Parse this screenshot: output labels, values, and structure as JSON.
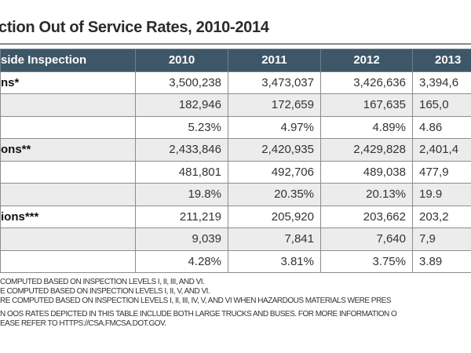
{
  "title": "ction Out of Service Rates, 2010-2014",
  "table": {
    "headers": [
      "side Inspection",
      "2010",
      "2011",
      "2012",
      "2013"
    ],
    "rows": [
      {
        "label": "ns*",
        "values": [
          "3,500,238",
          "3,473,037",
          "3,426,636",
          "3,394,6"
        ]
      },
      {
        "label": "",
        "values": [
          "182,946",
          "172,659",
          "167,635",
          "165,0"
        ]
      },
      {
        "label": "",
        "values": [
          "5.23%",
          "4.97%",
          "4.89%",
          "4.86"
        ]
      },
      {
        "label": "ons**",
        "values": [
          "2,433,846",
          "2,420,935",
          "2,429,828",
          "2,401,4"
        ]
      },
      {
        "label": "",
        "values": [
          "481,801",
          "492,706",
          "489,038",
          "477,9"
        ]
      },
      {
        "label": "",
        "values": [
          "19.8%",
          "20.35%",
          "20.13%",
          "19.9"
        ]
      },
      {
        "label": "ions***",
        "values": [
          "211,219",
          "205,920",
          "203,662",
          "203,2"
        ]
      },
      {
        "label": "",
        "values": [
          "9,039",
          "7,841",
          "7,640",
          "7,9"
        ]
      },
      {
        "label": "",
        "values": [
          "4.28%",
          "3.81%",
          "3.75%",
          "3.89"
        ]
      }
    ]
  },
  "notes": [
    "COMPUTED BASED ON INSPECTION LEVELS I, II, III, AND VI.",
    "E COMPUTED BASED ON INSPECTION LEVELS I, II, V, AND VI.",
    "RE COMPUTED BASED ON INSPECTION LEVELS I, II, III, IV, V, AND VI WHEN HAZARDOUS MATERIALS WERE PRES",
    "N OOS RATES DEPICTED IN THIS TABLE INCLUDE BOTH LARGE TRUCKS AND BUSES. FOR MORE INFORMATION O",
    "EASE REFER TO HTTPS://CSA.FMCSA.DOT.GOV."
  ],
  "colors": {
    "header_bg": "#3e5768",
    "alt_row": "#ececec"
  }
}
